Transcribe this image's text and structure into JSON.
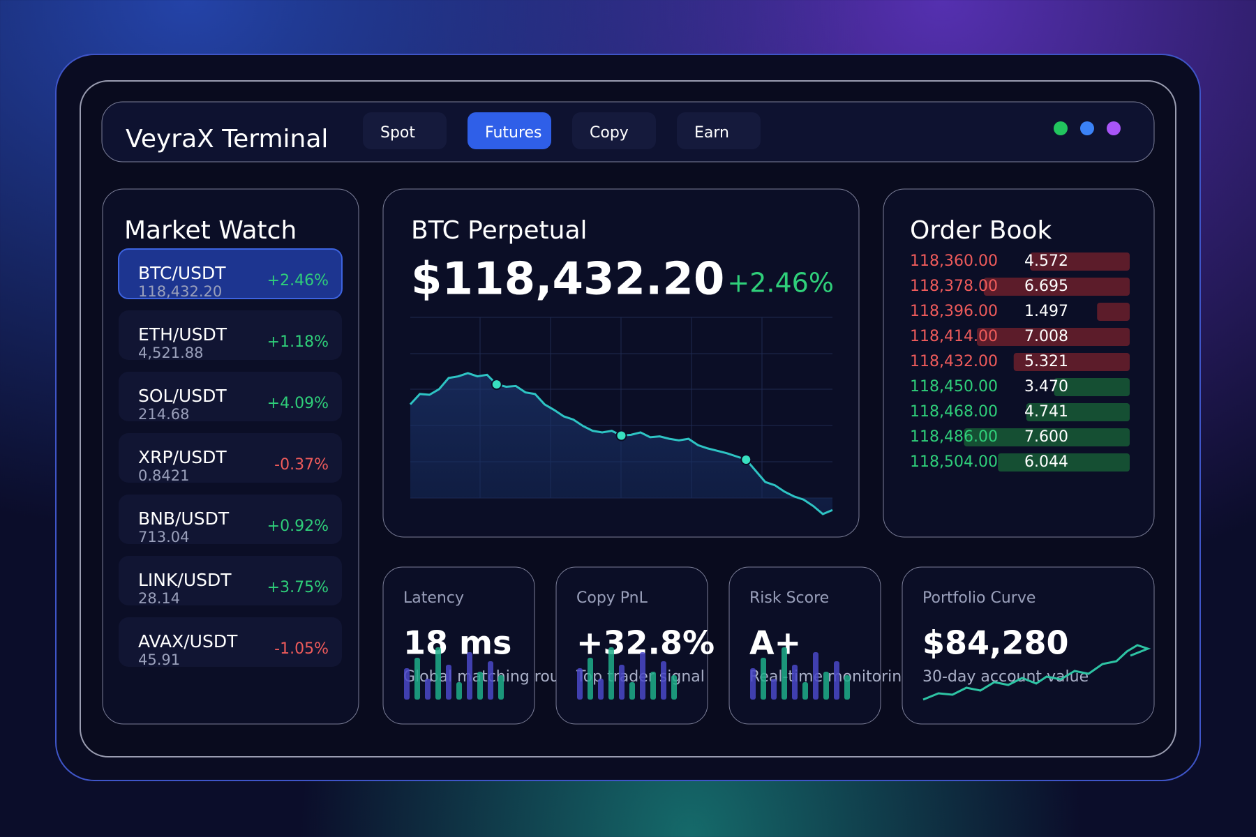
{
  "header": {
    "title": "VeyraX Terminal",
    "tabs": [
      "Spot",
      "Futures",
      "Copy",
      "Earn"
    ],
    "active_tab": "Futures"
  },
  "market_watch": {
    "title": "Market Watch",
    "rows": [
      {
        "pair": "BTC/USDT",
        "price": "118,432.20",
        "change": "+2.46%"
      },
      {
        "pair": "ETH/USDT",
        "price": "4,521.88",
        "change": "+1.18%"
      },
      {
        "pair": "SOL/USDT",
        "price": "214.68",
        "change": "+4.09%"
      },
      {
        "pair": "XRP/USDT",
        "price": "0.8421",
        "change": "-0.37%"
      },
      {
        "pair": "BNB/USDT",
        "price": "713.04",
        "change": "+0.92%"
      },
      {
        "pair": "LINK/USDT",
        "price": "28.14",
        "change": "+3.75%"
      },
      {
        "pair": "AVAX/USDT",
        "price": "45.91",
        "change": "-1.05%"
      }
    ]
  },
  "price_panel": {
    "title": "BTC Perpetual",
    "price": "$118,432.20",
    "change": "+2.46%",
    "chart": {
      "type": "line",
      "color": "#2ec4c4",
      "values": [
        195,
        208,
        207,
        214,
        228,
        230,
        234,
        230,
        232,
        220,
        217,
        218,
        210,
        208,
        195,
        188,
        180,
        176,
        168,
        162,
        160,
        162,
        156,
        157,
        160,
        154,
        155,
        152,
        150,
        152,
        144,
        140,
        137,
        134,
        130,
        126,
        112,
        98,
        94,
        86,
        80,
        76,
        68,
        58,
        63
      ]
    }
  },
  "order_book": {
    "title": "Order Book",
    "asks": [
      {
        "price": "118,360.00",
        "size": 4.572
      },
      {
        "price": "118,378.00",
        "size": 6.695
      },
      {
        "price": "118,396.00",
        "size": 1.497
      },
      {
        "price": "118,414.00",
        "size": 7.008
      },
      {
        "price": "118,432.00",
        "size": 5.321
      }
    ],
    "bids": [
      {
        "price": "118,450.00",
        "size": "3.470"
      },
      {
        "price": "118,468.00",
        "size": 4.741
      },
      {
        "price": "118,486.00",
        "size": "7.600"
      },
      {
        "price": "118,504.00",
        "size": 6.044
      }
    ]
  },
  "cards": [
    {
      "label": "Latency",
      "value": "18 ms",
      "sub": "Global matching route"
    },
    {
      "label": "Copy PnL",
      "value": "+32.8%",
      "sub": "Top trader signal"
    },
    {
      "label": "Risk Score",
      "value": "A+",
      "sub": "Real-time monitoring"
    },
    {
      "label": "Portfolio Curve",
      "value": "$84,280",
      "sub": "30-day account value"
    }
  ]
}
